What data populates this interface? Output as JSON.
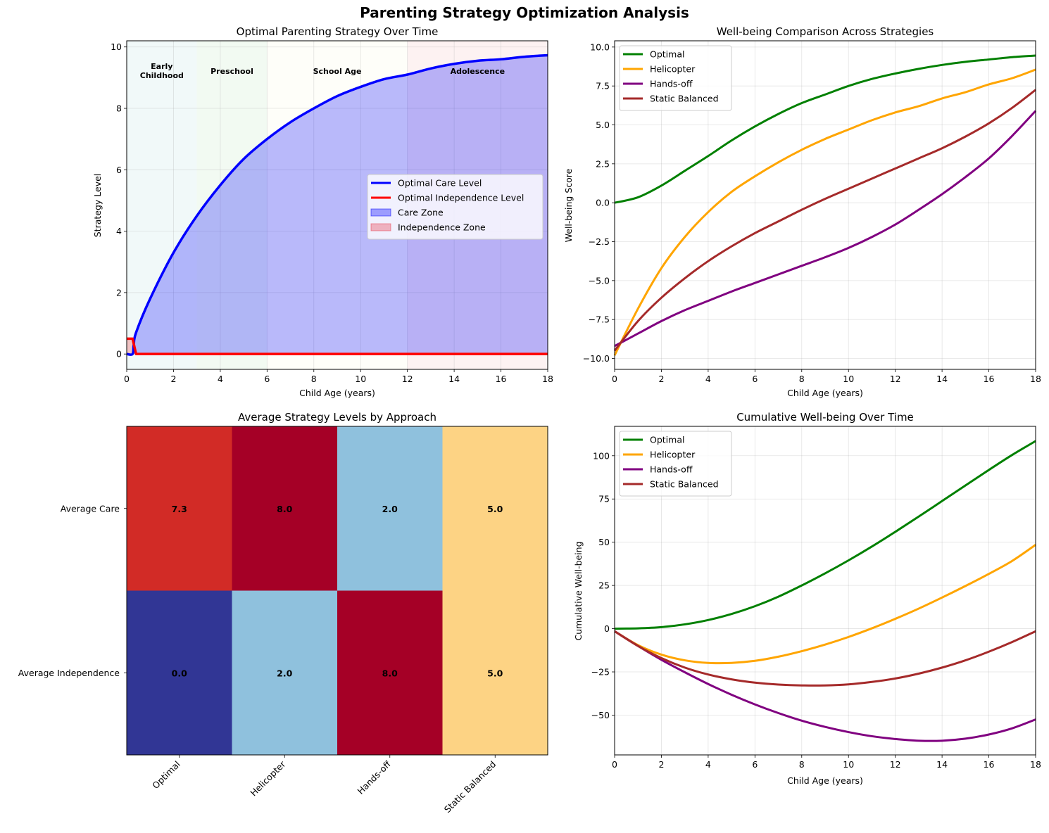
{
  "suptitle": "Parenting Strategy Optimization Analysis",
  "chart_data": [
    {
      "id": "strategy",
      "type": "area",
      "title": "Optimal Parenting Strategy Over Time",
      "xlabel": "Child Age (years)",
      "ylabel": "Strategy Level",
      "xlim": [
        0,
        18
      ],
      "ylim": [
        -0.5,
        10.2
      ],
      "xticks": [
        0,
        2,
        4,
        6,
        8,
        10,
        12,
        14,
        16,
        18
      ],
      "yticks": [
        0,
        2,
        4,
        6,
        8,
        10
      ],
      "grid": true,
      "legend_position": "center-right",
      "stages": [
        {
          "label": "Early\nChildhood",
          "from": 0,
          "to": 3,
          "color": "#e0f2f1"
        },
        {
          "label": "Preschool",
          "from": 3,
          "to": 6,
          "color": "#e3f5e3"
        },
        {
          "label": "School Age",
          "from": 6,
          "to": 12,
          "color": "#fdfdf2"
        },
        {
          "label": "Adolescence",
          "from": 12,
          "to": 18,
          "color": "#fbe3e3"
        }
      ],
      "series": [
        {
          "name": "Optimal Care Level",
          "color": "#0000ff",
          "fill": "Care Zone",
          "fill_color": "#0000ff",
          "x": [
            0,
            0.25,
            0.3,
            0.4,
            1,
            2,
            3,
            4,
            5,
            6,
            7,
            8,
            9,
            10,
            11,
            12,
            13,
            14,
            15,
            16,
            17,
            18
          ],
          "y": [
            0,
            0,
            0.3,
            0.7,
            1.8,
            3.3,
            4.5,
            5.5,
            6.35,
            7.0,
            7.55,
            8.0,
            8.4,
            8.7,
            8.95,
            9.1,
            9.3,
            9.45,
            9.55,
            9.6,
            9.68,
            9.73
          ]
        },
        {
          "name": "Optimal Independence Level",
          "color": "#ff0000",
          "fill": "Independence Zone",
          "fill_color": "#f08080",
          "x": [
            0,
            0.15,
            0.25,
            0.4,
            18
          ],
          "y": [
            0.5,
            0.5,
            0.5,
            0,
            0
          ]
        }
      ]
    },
    {
      "id": "wellbeing",
      "type": "line",
      "title": "Well-being Comparison Across Strategies",
      "xlabel": "Child Age (years)",
      "ylabel": "Well-being Score",
      "xlim": [
        0,
        18
      ],
      "ylim": [
        -10.7,
        10.4
      ],
      "xticks": [
        0,
        2,
        4,
        6,
        8,
        10,
        12,
        14,
        16,
        18
      ],
      "yticks": [
        -10.0,
        -7.5,
        -5.0,
        -2.5,
        0.0,
        2.5,
        5.0,
        7.5,
        10.0
      ],
      "grid": true,
      "legend_position": "top-left",
      "x": [
        0,
        1,
        2,
        3,
        4,
        5,
        6,
        7,
        8,
        9,
        10,
        11,
        12,
        13,
        14,
        15,
        16,
        17,
        18
      ],
      "series": [
        {
          "name": "Optimal",
          "color": "#008000",
          "values": [
            0.0,
            0.35,
            1.1,
            2.05,
            3.0,
            4.0,
            4.9,
            5.7,
            6.4,
            6.95,
            7.5,
            7.95,
            8.3,
            8.6,
            8.85,
            9.05,
            9.2,
            9.35,
            9.45
          ]
        },
        {
          "name": "Helicopter",
          "color": "#ffa500",
          "values": [
            -9.8,
            -6.8,
            -4.2,
            -2.2,
            -0.6,
            0.7,
            1.7,
            2.6,
            3.4,
            4.1,
            4.7,
            5.3,
            5.8,
            6.2,
            6.7,
            7.1,
            7.6,
            8.0,
            8.55
          ]
        },
        {
          "name": "Hands-off",
          "color": "#800080",
          "values": [
            -9.2,
            -8.4,
            -7.6,
            -6.9,
            -6.3,
            -5.7,
            -5.15,
            -4.6,
            -4.05,
            -3.5,
            -2.9,
            -2.2,
            -1.4,
            -0.45,
            0.55,
            1.65,
            2.85,
            4.3,
            5.9
          ]
        },
        {
          "name": "Static Balanced",
          "color": "#a52a2a",
          "values": [
            -9.5,
            -7.6,
            -6.1,
            -4.85,
            -3.75,
            -2.8,
            -1.95,
            -1.2,
            -0.45,
            0.25,
            0.9,
            1.55,
            2.2,
            2.85,
            3.5,
            4.25,
            5.1,
            6.1,
            7.25
          ]
        }
      ]
    },
    {
      "id": "heatmap",
      "type": "heatmap",
      "title": "Average Strategy Levels by Approach",
      "row_labels": [
        "Average Care",
        "Average Independence"
      ],
      "col_labels": [
        "Optimal",
        "Helicopter",
        "Hands-off",
        "Static Balanced"
      ],
      "values": [
        [
          7.3,
          8.0,
          2.0,
          5.0
        ],
        [
          0.0,
          2.0,
          8.0,
          5.0
        ]
      ],
      "value_labels": [
        [
          "7.3",
          "8.0",
          "2.0",
          "5.0"
        ],
        [
          "0.0",
          "2.0",
          "8.0",
          "5.0"
        ]
      ],
      "colormap": "RdYlBu_r",
      "cell_colors": [
        [
          "#d22b26",
          "#a50026",
          "#8fc1dd",
          "#fdd384"
        ],
        [
          "#313695",
          "#8fc1dd",
          "#a50026",
          "#fdd384"
        ]
      ]
    },
    {
      "id": "cumulative",
      "type": "line",
      "title": "Cumulative Well-being Over Time",
      "xlabel": "Child Age (years)",
      "ylabel": "Cumulative Well-being",
      "xlim": [
        0,
        18
      ],
      "ylim": [
        -73,
        117
      ],
      "xticks": [
        0,
        2,
        4,
        6,
        8,
        10,
        12,
        14,
        16,
        18
      ],
      "yticks": [
        -50,
        -25,
        0,
        25,
        50,
        75,
        100
      ],
      "grid": true,
      "legend_position": "top-left",
      "x": [
        0,
        1,
        2,
        3,
        4,
        5,
        6,
        7,
        8,
        9,
        10,
        11,
        12,
        13,
        14,
        15,
        16,
        17,
        18
      ],
      "series": [
        {
          "name": "Optimal",
          "color": "#008000",
          "values": [
            0.0,
            0.2,
            0.9,
            2.5,
            5.0,
            8.5,
            13.0,
            18.5,
            25.0,
            32.0,
            39.5,
            47.5,
            56.0,
            64.8,
            73.8,
            82.8,
            91.8,
            100.5,
            108.5
          ]
        },
        {
          "name": "Helicopter",
          "color": "#ffa500",
          "values": [
            -1.5,
            -9.5,
            -15.0,
            -18.3,
            -19.8,
            -19.8,
            -18.6,
            -16.2,
            -13.0,
            -9.2,
            -4.8,
            0.2,
            5.7,
            11.6,
            18.0,
            24.7,
            31.7,
            39.2,
            48.5
          ]
        },
        {
          "name": "Hands-off",
          "color": "#800080",
          "values": [
            -1.5,
            -10.0,
            -18.0,
            -25.2,
            -32.0,
            -38.2,
            -43.8,
            -48.8,
            -53.2,
            -56.8,
            -59.8,
            -62.2,
            -63.8,
            -64.8,
            -64.8,
            -63.6,
            -61.2,
            -57.6,
            -52.5
          ]
        },
        {
          "name": "Static Balanced",
          "color": "#a52a2a",
          "values": [
            -1.5,
            -10.0,
            -17.0,
            -22.5,
            -26.5,
            -29.3,
            -31.2,
            -32.3,
            -32.8,
            -32.8,
            -32.2,
            -30.8,
            -28.8,
            -26.0,
            -22.5,
            -18.3,
            -13.3,
            -7.7,
            -1.5
          ]
        }
      ]
    }
  ]
}
